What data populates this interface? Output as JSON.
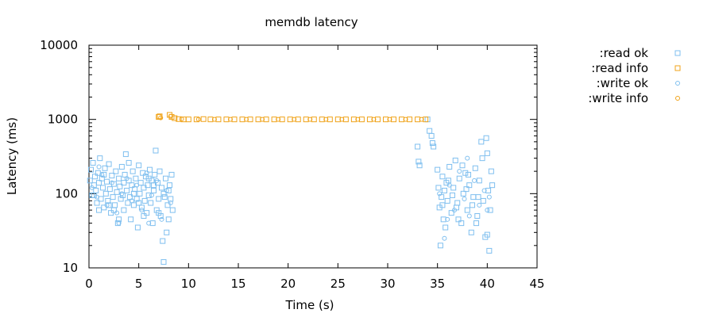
{
  "chart_data": {
    "type": "scatter",
    "title": "memdb latency",
    "xlabel": "Time (s)",
    "ylabel": "Latency (ms)",
    "xlim": [
      0,
      45
    ],
    "ylim": [
      10,
      10000
    ],
    "yscale": "log",
    "grid": false,
    "legend_position": "top-right, outside plot",
    "x_ticks": [
      "0",
      "5",
      "10",
      "15",
      "20",
      "25",
      "30",
      "35",
      "40",
      "45"
    ],
    "y_ticks": [
      "10",
      "100",
      "1000",
      "10000"
    ],
    "series": [
      {
        "name": ":read ok",
        "marker": "square",
        "color": "#7fbfef",
        "points": [
          [
            0.1,
            150
          ],
          [
            0.2,
            210
          ],
          [
            0.3,
            95
          ],
          [
            0.4,
            260
          ],
          [
            0.5,
            130
          ],
          [
            0.6,
            170
          ],
          [
            0.7,
            110
          ],
          [
            0.8,
            75
          ],
          [
            0.9,
            190
          ],
          [
            1.0,
            140
          ],
          [
            1.1,
            300
          ],
          [
            1.2,
            85
          ],
          [
            1.3,
            160
          ],
          [
            1.4,
            120
          ],
          [
            1.5,
            65
          ],
          [
            1.6,
            220
          ],
          [
            1.7,
            100
          ],
          [
            1.8,
            145
          ],
          [
            1.9,
            80
          ],
          [
            2.0,
            250
          ],
          [
            2.1,
            115
          ],
          [
            2.2,
            55
          ],
          [
            2.3,
            175
          ],
          [
            2.4,
            90
          ],
          [
            2.5,
            135
          ],
          [
            2.6,
            70
          ],
          [
            2.7,
            200
          ],
          [
            2.8,
            105
          ],
          [
            2.9,
            40
          ],
          [
            3.0,
            160
          ],
          [
            3.1,
            125
          ],
          [
            3.2,
            85
          ],
          [
            3.3,
            230
          ],
          [
            3.4,
            95
          ],
          [
            3.5,
            60
          ],
          [
            3.6,
            180
          ],
          [
            3.7,
            340
          ],
          [
            3.8,
            110
          ],
          [
            3.9,
            75
          ],
          [
            4.0,
            150
          ],
          [
            4.1,
            90
          ],
          [
            4.2,
            45
          ],
          [
            4.3,
            130
          ],
          [
            4.4,
            200
          ],
          [
            4.5,
            70
          ],
          [
            4.6,
            115
          ],
          [
            4.7,
            160
          ],
          [
            4.8,
            85
          ],
          [
            4.9,
            35
          ],
          [
            5.0,
            240
          ],
          [
            5.1,
            100
          ],
          [
            5.2,
            140
          ],
          [
            5.3,
            65
          ],
          [
            5.4,
            190
          ],
          [
            5.5,
            120
          ],
          [
            5.6,
            80
          ],
          [
            5.7,
            170
          ],
          [
            5.8,
            55
          ],
          [
            5.9,
            130
          ],
          [
            6.0,
            95
          ],
          [
            6.1,
            210
          ],
          [
            6.2,
            75
          ],
          [
            6.3,
            150
          ],
          [
            6.4,
            40
          ],
          [
            6.5,
            110
          ],
          [
            6.6,
            180
          ],
          [
            6.7,
            380
          ],
          [
            6.8,
            60
          ],
          [
            6.9,
            140
          ],
          [
            7.0,
            85
          ],
          [
            7.1,
            200
          ],
          [
            7.2,
            50
          ],
          [
            7.3,
            120
          ],
          [
            7.4,
            23
          ],
          [
            7.5,
            12
          ],
          [
            7.6,
            90
          ],
          [
            7.7,
            160
          ],
          [
            7.8,
            30
          ],
          [
            7.9,
            70
          ],
          [
            8.0,
            45
          ],
          [
            8.1,
            130
          ],
          [
            8.2,
            85
          ],
          [
            8.3,
            180
          ],
          [
            8.4,
            60
          ],
          [
            0.5,
            95
          ],
          [
            1.5,
            180
          ],
          [
            2.5,
            60
          ],
          [
            3.5,
            140
          ],
          [
            4.5,
            100
          ],
          [
            5.5,
            50
          ],
          [
            6.5,
            130
          ],
          [
            7.5,
            100
          ],
          [
            8.0,
            110
          ],
          [
            2.0,
            70
          ],
          [
            3.0,
            45
          ],
          [
            4.0,
            260
          ],
          [
            5.0,
            75
          ],
          [
            6.0,
            160
          ],
          [
            7.0,
            55
          ],
          [
            1.0,
            60
          ],
          [
            33.0,
            430
          ],
          [
            33.1,
            270
          ],
          [
            33.2,
            240
          ],
          [
            34.0,
            1000
          ],
          [
            34.2,
            700
          ],
          [
            34.4,
            600
          ],
          [
            34.5,
            480
          ],
          [
            34.6,
            430
          ],
          [
            35.0,
            210
          ],
          [
            35.1,
            120
          ],
          [
            35.2,
            65
          ],
          [
            35.3,
            20
          ],
          [
            35.4,
            90
          ],
          [
            35.5,
            170
          ],
          [
            35.6,
            45
          ],
          [
            35.7,
            110
          ],
          [
            35.8,
            35
          ],
          [
            35.9,
            140
          ],
          [
            36.0,
            80
          ],
          [
            36.2,
            230
          ],
          [
            36.4,
            55
          ],
          [
            36.6,
            120
          ],
          [
            36.8,
            280
          ],
          [
            37.0,
            75
          ],
          [
            37.2,
            160
          ],
          [
            37.4,
            40
          ],
          [
            37.6,
            100
          ],
          [
            37.8,
            190
          ],
          [
            38.0,
            60
          ],
          [
            38.2,
            130
          ],
          [
            38.4,
            30
          ],
          [
            38.6,
            90
          ],
          [
            38.8,
            220
          ],
          [
            39.0,
            50
          ],
          [
            39.2,
            150
          ],
          [
            39.4,
            500
          ],
          [
            39.6,
            80
          ],
          [
            39.8,
            26
          ],
          [
            40.0,
            350
          ],
          [
            40.1,
            110
          ],
          [
            40.2,
            17
          ],
          [
            40.3,
            60
          ],
          [
            40.4,
            200
          ],
          [
            40.5,
            130
          ],
          [
            39.5,
            300
          ],
          [
            39.9,
            560
          ],
          [
            38.5,
            70
          ],
          [
            37.5,
            240
          ],
          [
            36.5,
            95
          ],
          [
            35.5,
            70
          ],
          [
            36.1,
            150
          ],
          [
            37.1,
            45
          ],
          [
            38.1,
            180
          ],
          [
            39.1,
            90
          ],
          [
            40.0,
            28
          ],
          [
            36.9,
            65
          ],
          [
            37.9,
            115
          ],
          [
            38.9,
            40
          ]
        ]
      },
      {
        "name": ":read info",
        "marker": "square",
        "color": "#f0a31a",
        "points": [
          [
            7.0,
            1080
          ],
          [
            7.1,
            1100
          ],
          [
            8.1,
            1150
          ],
          [
            8.3,
            1080
          ],
          [
            8.6,
            1040
          ],
          [
            9.0,
            1010
          ],
          [
            9.5,
            1000
          ],
          [
            10.0,
            1000
          ],
          [
            10.8,
            1000
          ],
          [
            11.5,
            1010
          ],
          [
            12.2,
            1000
          ],
          [
            13.0,
            1000
          ],
          [
            13.8,
            1000
          ],
          [
            14.6,
            1000
          ],
          [
            15.4,
            1000
          ],
          [
            16.2,
            1000
          ],
          [
            17.0,
            1000
          ],
          [
            17.8,
            1000
          ],
          [
            18.6,
            1000
          ],
          [
            19.4,
            1000
          ],
          [
            20.2,
            1000
          ],
          [
            21.0,
            1000
          ],
          [
            21.8,
            1000
          ],
          [
            22.6,
            1000
          ],
          [
            23.4,
            1000
          ],
          [
            24.2,
            1000
          ],
          [
            25.0,
            1000
          ],
          [
            25.8,
            1000
          ],
          [
            26.6,
            1000
          ],
          [
            27.4,
            1000
          ],
          [
            28.2,
            1000
          ],
          [
            29.0,
            1000
          ],
          [
            29.8,
            1000
          ],
          [
            30.6,
            1000
          ],
          [
            31.4,
            1000
          ],
          [
            32.2,
            1000
          ],
          [
            33.0,
            1000
          ],
          [
            33.8,
            1000
          ]
        ]
      },
      {
        "name": ":write ok",
        "marker": "circle",
        "color": "#7fbfef",
        "points": [
          [
            0.3,
            120
          ],
          [
            0.8,
            90
          ],
          [
            1.3,
            180
          ],
          [
            1.8,
            70
          ],
          [
            2.3,
            140
          ],
          [
            2.8,
            55
          ],
          [
            3.3,
            100
          ],
          [
            3.8,
            160
          ],
          [
            4.3,
            80
          ],
          [
            4.8,
            130
          ],
          [
            5.3,
            60
          ],
          [
            5.8,
            190
          ],
          [
            6.3,
            95
          ],
          [
            6.8,
            150
          ],
          [
            7.3,
            45
          ],
          [
            7.8,
            110
          ],
          [
            8.2,
            75
          ],
          [
            1.0,
            230
          ],
          [
            3.0,
            40
          ],
          [
            6.0,
            40
          ],
          [
            35.2,
            100
          ],
          [
            35.7,
            25
          ],
          [
            36.2,
            130
          ],
          [
            36.7,
            60
          ],
          [
            37.2,
            200
          ],
          [
            37.7,
            85
          ],
          [
            38.2,
            50
          ],
          [
            38.7,
            150
          ],
          [
            39.2,
            70
          ],
          [
            39.7,
            110
          ],
          [
            40.2,
            90
          ],
          [
            36.0,
            45
          ],
          [
            38.0,
            300
          ],
          [
            40.0,
            60
          ]
        ]
      },
      {
        "name": ":write info",
        "marker": "circle",
        "color": "#f0a31a",
        "points": [
          [
            7.2,
            1050
          ],
          [
            8.2,
            1100
          ],
          [
            9.3,
            1010
          ],
          [
            11.0,
            1000
          ],
          [
            12.6,
            1000
          ],
          [
            14.2,
            1000
          ],
          [
            15.8,
            1000
          ],
          [
            17.4,
            1000
          ],
          [
            19.0,
            1000
          ],
          [
            20.6,
            1000
          ],
          [
            22.2,
            1000
          ],
          [
            23.8,
            1000
          ],
          [
            25.4,
            1000
          ],
          [
            27.0,
            1000
          ],
          [
            28.6,
            1000
          ],
          [
            30.2,
            1000
          ],
          [
            31.8,
            1000
          ],
          [
            33.4,
            1000
          ]
        ]
      }
    ]
  }
}
